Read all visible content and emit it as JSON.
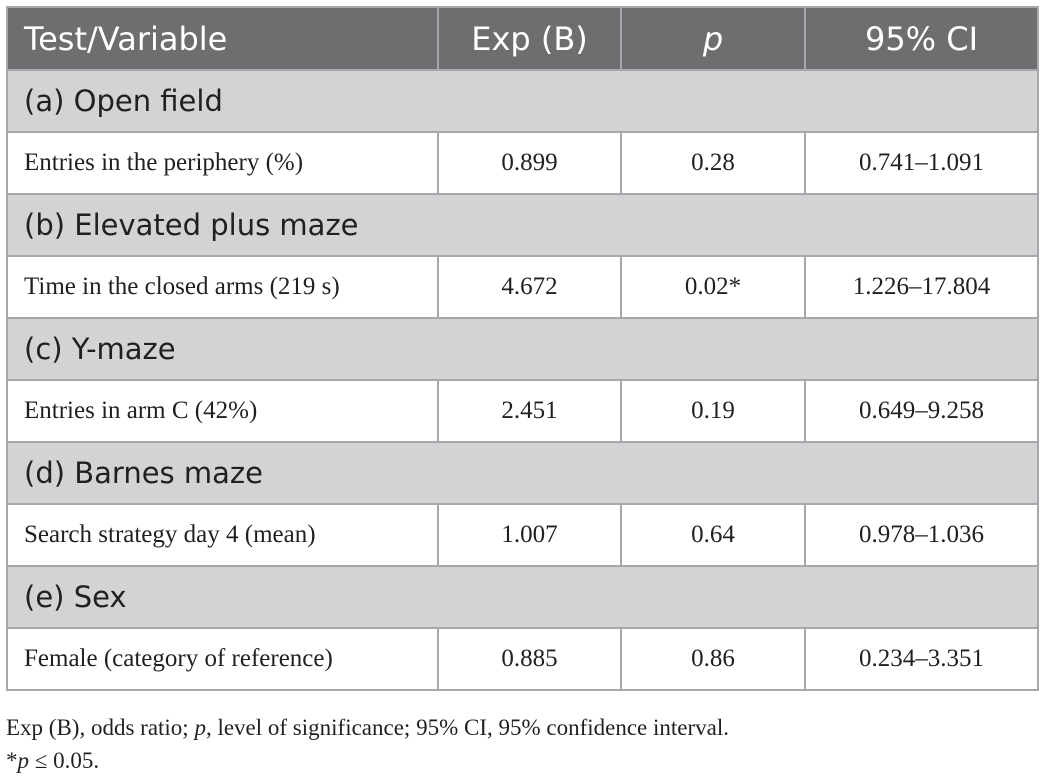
{
  "table": {
    "headers": {
      "variable": "Test/Variable",
      "exp_b": "Exp (B)",
      "p": "p",
      "ci": "95% CI"
    },
    "sections": [
      {
        "title": "(a) Open field",
        "row": {
          "variable": "Entries in the periphery (%)",
          "exp_b": "0.899",
          "p": "0.28",
          "ci": "0.741–1.091"
        }
      },
      {
        "title": "(b) Elevated plus maze",
        "row": {
          "variable": "Time in the closed arms (219 s)",
          "exp_b": "4.672",
          "p": "0.02*",
          "ci": "1.226–17.804"
        }
      },
      {
        "title": "(c) Y-maze",
        "row": {
          "variable": "Entries in arm C (42%)",
          "exp_b": "2.451",
          "p": "0.19",
          "ci": "0.649–9.258"
        }
      },
      {
        "title": "(d) Barnes maze",
        "row": {
          "variable": "Search strategy day 4 (mean)",
          "exp_b": "1.007",
          "p": "0.64",
          "ci": "0.978–1.036"
        }
      },
      {
        "title": "(e) Sex",
        "row": {
          "variable": "Female (category of reference)",
          "exp_b": "0.885",
          "p": "0.86",
          "ci": "0.234–3.351"
        }
      }
    ]
  },
  "footnotes": {
    "line1_a": "Exp (B), odds ratio; ",
    "line1_p": "p",
    "line1_b": ", level of significance; 95% CI, 95% confidence interval.",
    "line2_star": "*",
    "line2_p": "p",
    "line2_rest": " ≤ 0.05."
  }
}
